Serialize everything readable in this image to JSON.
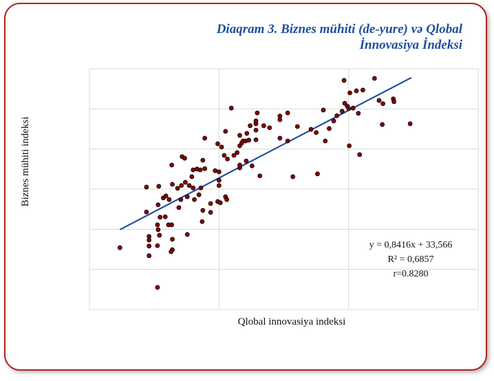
{
  "chart_data": {
    "type": "scatter",
    "title": [
      "Diaqram 3. Biznes mühiti (de-yure) və Qlobal",
      "İnnovasiya İndeksi"
    ],
    "xlabel": "Qlobal innovasiya  indeksi",
    "ylabel": "Biznes mühiti indeksi",
    "annotations": [
      "y = 0,8416x  + 33,566",
      "R² = 0,6857",
      "r=0.8280"
    ],
    "color": "#8b0000",
    "x": [
      14.7,
      18.8,
      20.7,
      18.8,
      20.6,
      21.4,
      21.8,
      22.8,
      23.6,
      24.2,
      25.4,
      24.8,
      25.8,
      22.7,
      24.3,
      24.7,
      26.0,
      26.6,
      27.1,
      27.8,
      27.5,
      27.8,
      27.2,
      26.9,
      26.2,
      26.0,
      25.1,
      24.1,
      23.8,
      22.3,
      20.9,
      21.7,
      22.2,
      22.7,
      20.5,
      20.6,
      19.2,
      19.2,
      19.2,
      20.8,
      20.5,
      22.8,
      22.8,
      22.6,
      19.2,
      25.1,
      27.4,
      27.5,
      28.7,
      28.7,
      29.8,
      30.2,
      30.0,
      30.0,
      31.0,
      31.2,
      29.4,
      30.0,
      29.8,
      30.4,
      30.8,
      31.0,
      31.3,
      31.9,
      32.3,
      32.8,
      33.2,
      33.2,
      33.5,
      33.7,
      34.1,
      34.3,
      34.6,
      34.8,
      35.7,
      35.7,
      35.7,
      35.7,
      35.9,
      36.9,
      33.2,
      33.2,
      34.2,
      35.1,
      36.3,
      37.8,
      39.4,
      39.4,
      39.4,
      40.6,
      40.6,
      42.1,
      41.4,
      44.2,
      45.0,
      45.2,
      46.1,
      46.4,
      47.0,
      47.7,
      48.2,
      49.0,
      49.3,
      49.4,
      49.8,
      50.0,
      50.1,
      50.2,
      50.7,
      51.2,
      51.5,
      51.7,
      52.2,
      54.0,
      54.7,
      55.2,
      55.3,
      56.9,
      57.0,
      59.5,
      20.5
    ],
    "values": [
      41.4,
      56.5,
      56.7,
      50.3,
      52.1,
      53.8,
      54.3,
      57.2,
      56.2,
      56.9,
      56.9,
      57.7,
      59.1,
      62.0,
      64.1,
      63.7,
      60.8,
      61.0,
      60.8,
      61.1,
      63.2,
      68.7,
      56.3,
      54.6,
      53.4,
      56.3,
      54.1,
      53.4,
      51.4,
      53.4,
      49.0,
      49.1,
      47.1,
      47.1,
      47.1,
      45.9,
      44.2,
      43.3,
      41.8,
      44.5,
      41.9,
      43.5,
      40.9,
      40.4,
      39.4,
      44.7,
      47.9,
      50.7,
      50.2,
      52.4,
      52.9,
      52.6,
      58.2,
      56.9,
      54.1,
      53.4,
      60.6,
      60.3,
      67.3,
      66.5,
      64.4,
      70.4,
      63.5,
      76.2,
      64.4,
      65.1,
      66.8,
      69.4,
      67.5,
      68.0,
      68.0,
      69.9,
      68.2,
      71.8,
      68.3,
      70.7,
      72.3,
      73.0,
      75.0,
      71.8,
      61.3,
      62.0,
      63.0,
      61.8,
      59.3,
      71.3,
      73.3,
      74.2,
      68.7,
      68.0,
      75.0,
      71.6,
      59.1,
      70.9,
      70.1,
      59.8,
      75.7,
      68.0,
      71.1,
      73.0,
      74.3,
      75.4,
      83.1,
      77.4,
      76.7,
      76.1,
      66.8,
      80.0,
      76.2,
      80.5,
      74.9,
      64.6,
      80.7,
      83.6,
      78.1,
      72.1,
      77.3,
      78.5,
      77.8,
      72.3,
      31.5
    ],
    "trendline": {
      "color": "#1f4ea0",
      "x": [
        14.7,
        59.7
      ],
      "values": [
        45.9,
        83.8
      ]
    },
    "xlim": [
      10,
      70
    ],
    "xticks": [
      10,
      30,
      50,
      70
    ],
    "ylim": [
      26,
      86
    ],
    "yticks": [
      26,
      36,
      46,
      56,
      66,
      76,
      86
    ],
    "grid": true
  }
}
